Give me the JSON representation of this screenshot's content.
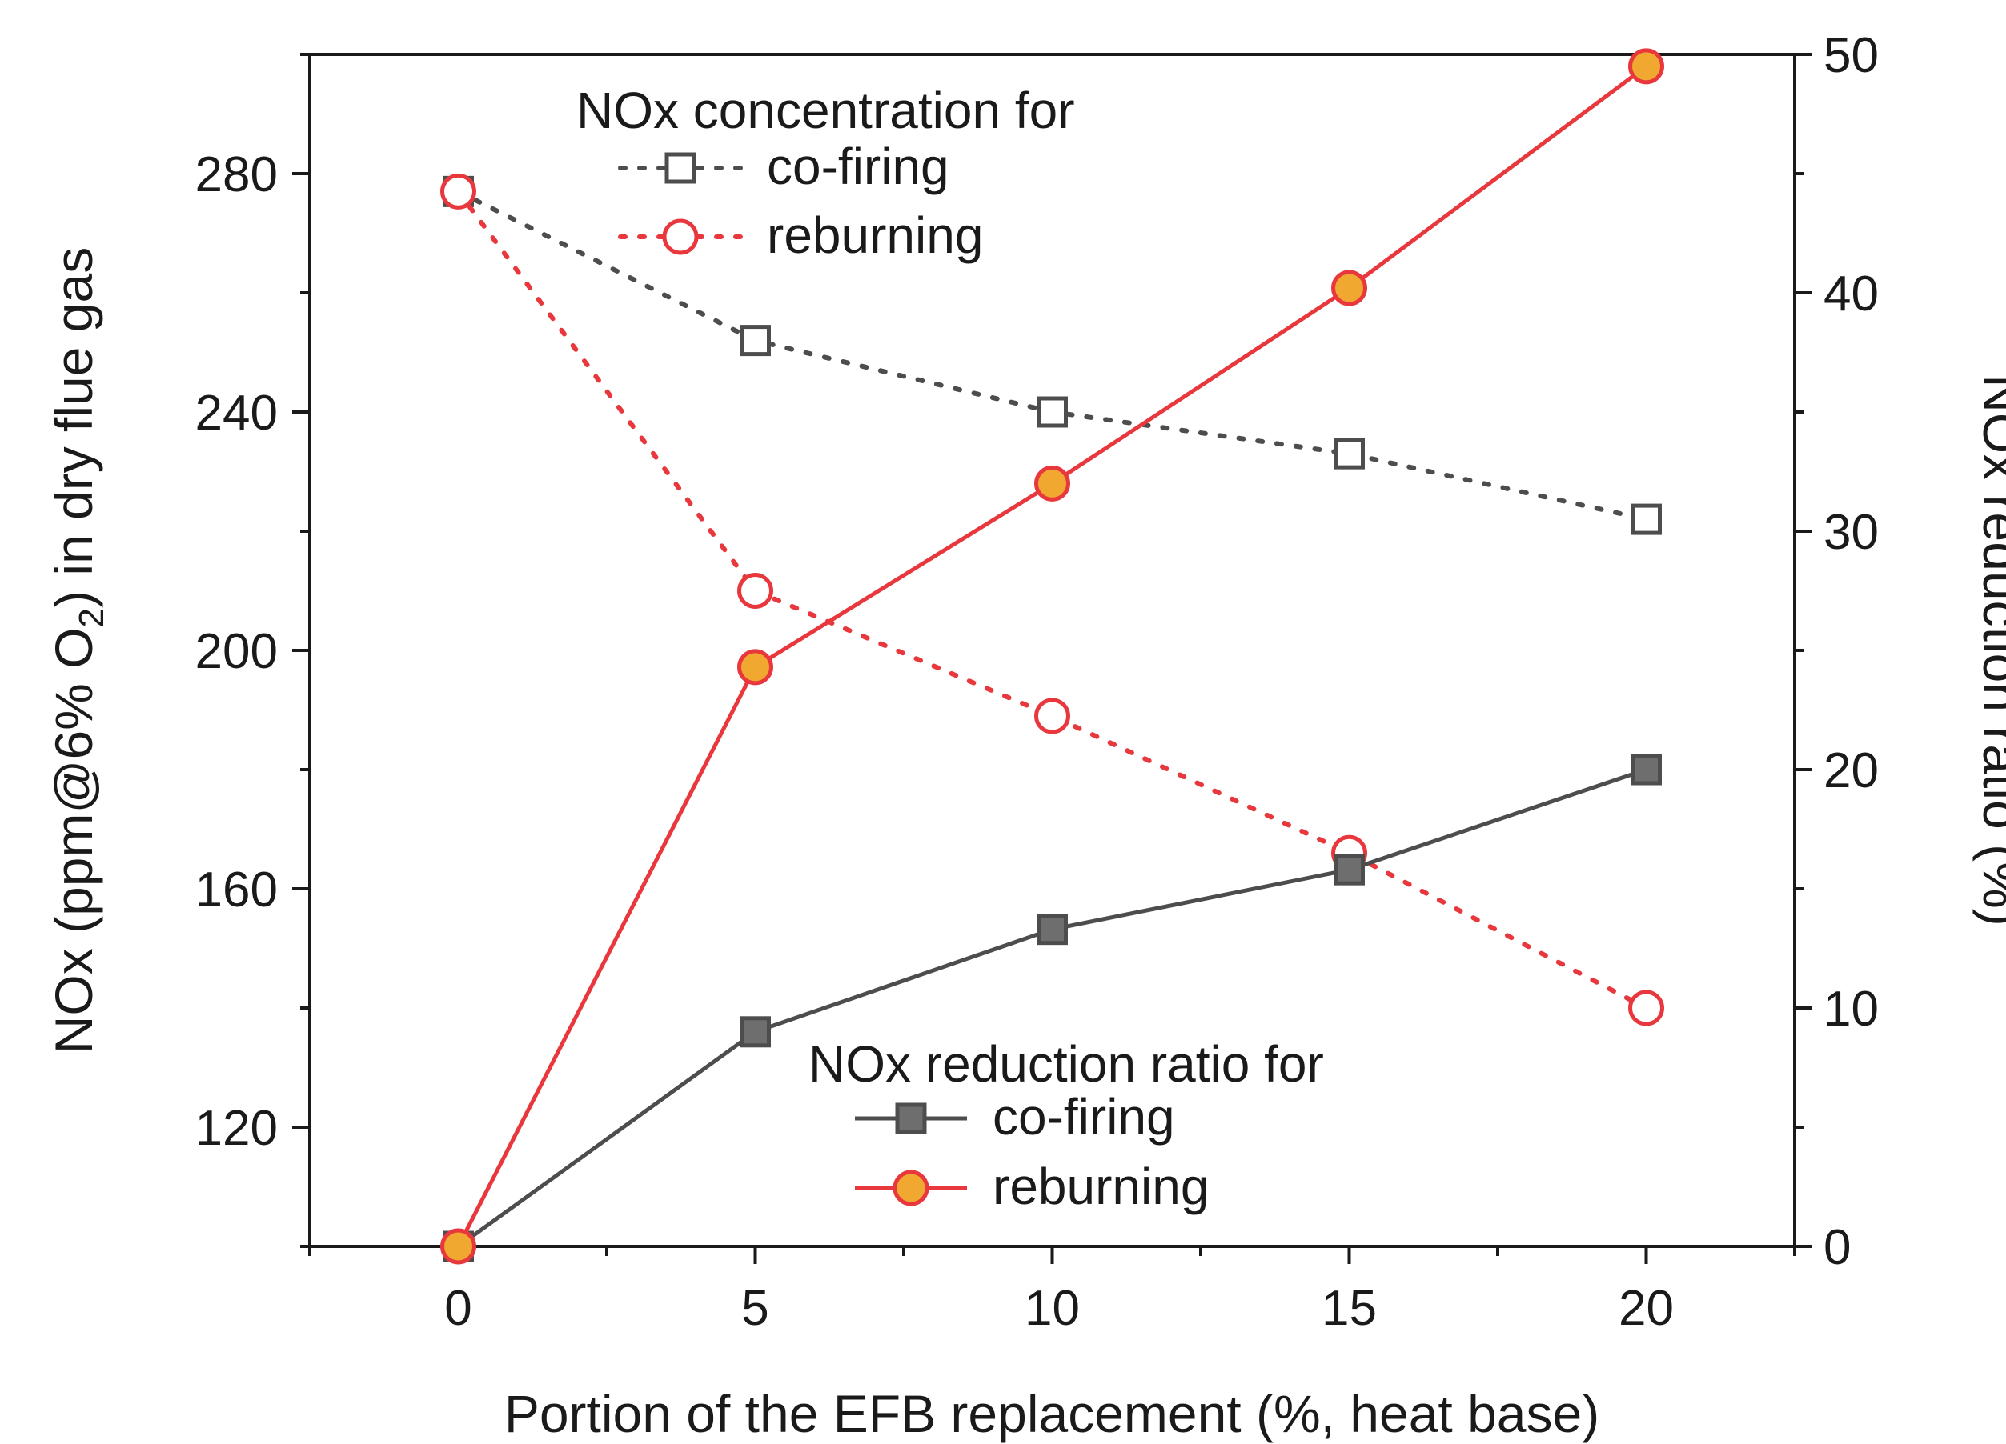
{
  "chart_data": {
    "type": "line",
    "x": [
      0,
      5,
      10,
      15,
      20
    ],
    "xlabel": "Portion of the EFB replacement (%, heat base)",
    "xlim": [
      -2.5,
      22.5
    ],
    "xticks": [
      0,
      5,
      10,
      15,
      20
    ],
    "xtick_labels": [
      "0",
      "5",
      "10",
      "15",
      "20"
    ],
    "ylabel_left": {
      "prefix": "NOx (ppm@6% O",
      "subscript": "2",
      "suffix": ") in dry flue gas"
    },
    "ylim_left": [
      100,
      300
    ],
    "yticks_left": [
      120,
      160,
      200,
      240,
      280
    ],
    "ytick_labels_left": [
      "120",
      "160",
      "200",
      "240",
      "280"
    ],
    "ylabel_right": "NOx reduction ratio (%)",
    "ylim_right": [
      0,
      50
    ],
    "yticks_right": [
      0,
      10,
      20,
      30,
      40,
      50
    ],
    "ytick_labels_right": [
      "0",
      "10",
      "20",
      "30",
      "40",
      "50"
    ],
    "series": [
      {
        "name": "co-firing",
        "group": "concentration",
        "axis": "left",
        "values": [
          277,
          252,
          240,
          233,
          222
        ],
        "color": "#4d4d4d",
        "line": "dotted",
        "marker": "square-open"
      },
      {
        "name": "reburning",
        "group": "concentration",
        "axis": "left",
        "values": [
          277,
          210,
          189,
          166,
          140
        ],
        "color": "#e8383d",
        "line": "dotted",
        "marker": "circle-open"
      },
      {
        "name": "co-firing",
        "group": "reduction",
        "axis": "right",
        "values": [
          0,
          9,
          13.3,
          15.8,
          20
        ],
        "color": "#4d4d4d",
        "line": "solid",
        "marker": "square-filled",
        "fill": "#6e6e6e"
      },
      {
        "name": "reburning",
        "group": "reduction",
        "axis": "right",
        "values": [
          0,
          24.3,
          32,
          40.2,
          49.5
        ],
        "color": "#e8383d",
        "line": "solid",
        "marker": "circle-filled",
        "fill": "#f0a830"
      }
    ],
    "legends": [
      {
        "title": "NOx concentration for",
        "entries": [
          "co-firing",
          "reburning"
        ],
        "series": [
          0,
          1
        ],
        "position": "top-left"
      },
      {
        "title": "NOx reduction ratio for",
        "entries": [
          "co-firing",
          "reburning"
        ],
        "series": [
          2,
          3
        ],
        "position": "bottom-center"
      }
    ]
  }
}
